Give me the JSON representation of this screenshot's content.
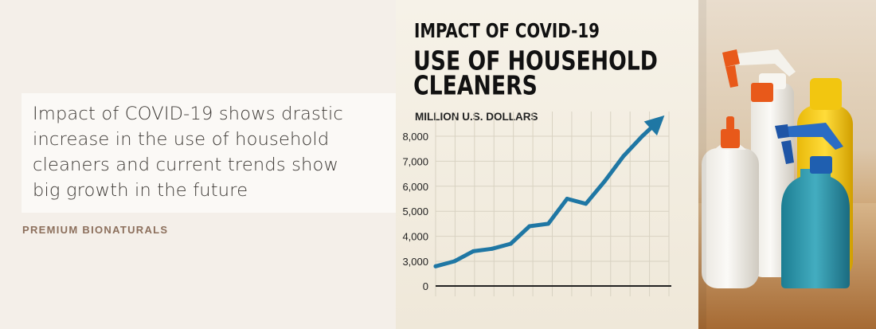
{
  "quote": {
    "lines": [
      "Impact of COVID-19 shows drastic",
      "increase in the use of household",
      "cleaners and current trends show",
      "big growth in the future"
    ]
  },
  "brand": "PREMIUM BIONATURALS",
  "chart_data": {
    "type": "line",
    "title": "IMPACT OF COVID-19",
    "subtitle_lines": [
      "USE OF HOUSEHOLD",
      "CLEANERS"
    ],
    "ylabel": "MILLION U.S. DOLLARS",
    "yticks": [
      0,
      3000,
      4000,
      5000,
      6000,
      7000,
      8000
    ],
    "ytick_labels": [
      "0",
      "3,000",
      "4,000",
      "5,000",
      "6,000",
      "7,000",
      "8,000"
    ],
    "y_axis_break": true,
    "ylim": [
      0,
      8000
    ],
    "grid": true,
    "series": [
      {
        "values": [
          2800,
          3000,
          3400,
          3500,
          3700,
          4400,
          4500,
          5500,
          5300,
          6200,
          7200,
          8000,
          8700
        ]
      }
    ],
    "line_color": "#1f77a4",
    "arrow_end": true
  },
  "colors": {
    "background": "#f4efe9",
    "text": "#3d3935",
    "brand": "#8c6f5c",
    "line": "#1f77a4",
    "grid": "#d8d2c2"
  },
  "illustration": {
    "items": [
      "white squeeze bottle with orange cap",
      "white spray bottle with orange trigger",
      "yellow bottle",
      "teal spray bottle with blue trigger"
    ]
  }
}
